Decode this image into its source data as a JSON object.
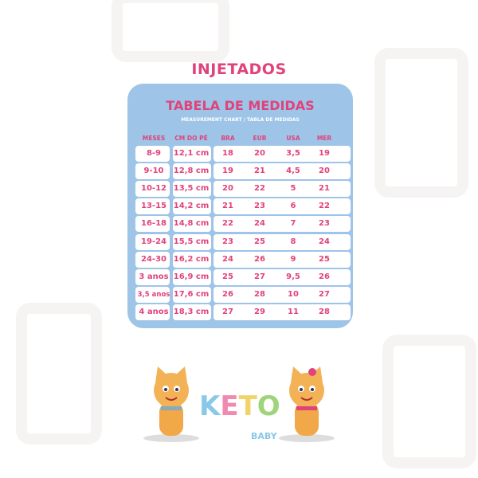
{
  "title": "INJETADOS",
  "chart": {
    "title": "TABELA DE MEDIDAS",
    "subtitle": "MEASUREMENT CHART / TABLA DE MEDIDAS",
    "headers": [
      "MESES",
      "CM DO PÉ",
      "BRA",
      "EUR",
      "USA",
      "MER"
    ],
    "rows": [
      [
        "8-9",
        "12,1 cm",
        "18",
        "20",
        "3,5",
        "19"
      ],
      [
        "9-10",
        "12,8 cm",
        "19",
        "21",
        "4,5",
        "20"
      ],
      [
        "10-12",
        "13,5 cm",
        "20",
        "22",
        "5",
        "21"
      ],
      [
        "13-15",
        "14,2 cm",
        "21",
        "23",
        "6",
        "22"
      ],
      [
        "16-18",
        "14,8 cm",
        "22",
        "24",
        "7",
        "23"
      ],
      [
        "19-24",
        "15,5 cm",
        "23",
        "25",
        "8",
        "24"
      ],
      [
        "24-30",
        "16,2 cm",
        "24",
        "26",
        "9",
        "25"
      ],
      [
        "3 anos",
        "16,9 cm",
        "25",
        "27",
        "9,5",
        "26"
      ],
      [
        "3,5 anos",
        "17,6 cm",
        "26",
        "28",
        "10",
        "27"
      ],
      [
        "4 anos",
        "18,3 cm",
        "27",
        "29",
        "11",
        "28"
      ]
    ]
  },
  "logo": {
    "brand": "KETO",
    "sub": "BABY"
  },
  "colors": {
    "accent": "#e0437b",
    "card": "#9ec4e7"
  }
}
